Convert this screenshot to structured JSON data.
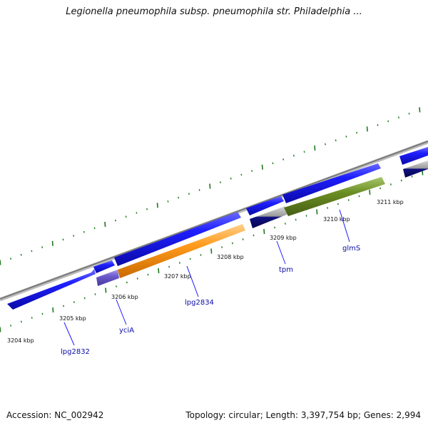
{
  "title": "Legionella pneumophila subsp. pneumophila str. Philadelphia ...",
  "footer": {
    "accession": "Accession: NC_002942",
    "summary": "Topology: circular; Length: 3,397,754 bp; Genes: 2,994"
  },
  "colors": {
    "backbone": "#8a8a8a",
    "gene_blue": "#1414e6",
    "lpg2834": "#ff9a1a",
    "glmS": "#6b8e23",
    "tpm": "#101080",
    "yciA": "#6a5acd",
    "tick": "#1e7a1e",
    "label": "#0b0ba6"
  },
  "kbp_labels": [
    "3204 kbp",
    "3205 kbp",
    "3206 kbp",
    "3207 kbp",
    "3208 kbp",
    "3209 kbp",
    "3210 kbp",
    "3211 kbp"
  ],
  "gene_labels": [
    "lpg2832",
    "yciA",
    "lpg2834",
    "tpm",
    "glmS"
  ]
}
